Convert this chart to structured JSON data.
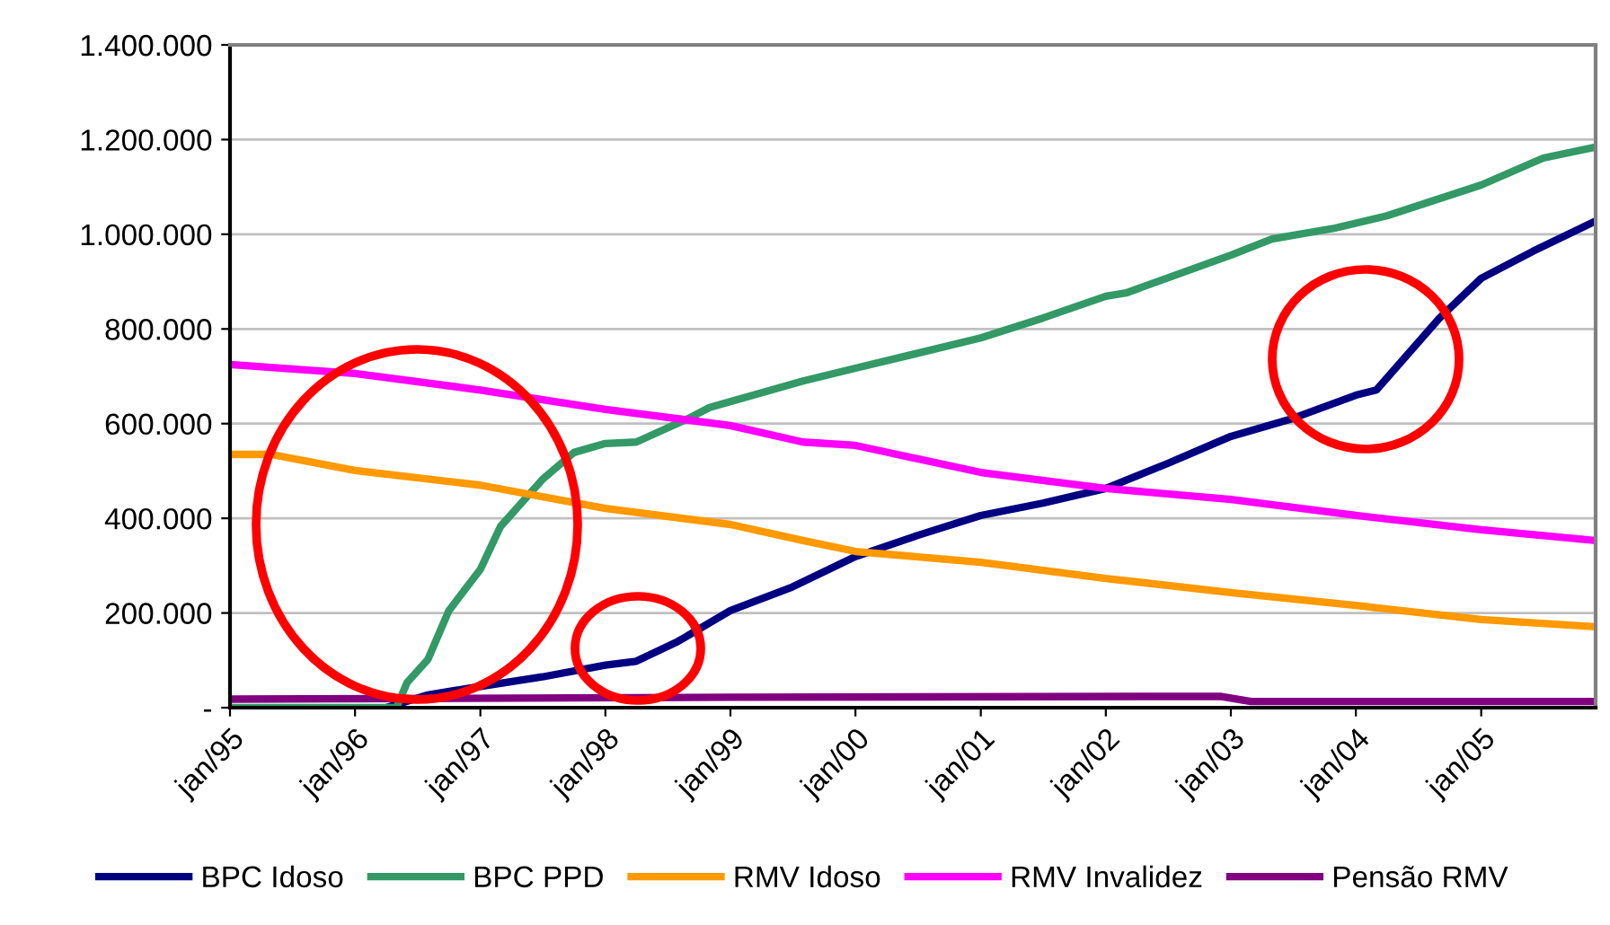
{
  "chart_data": {
    "type": "line",
    "xlim": [
      "1995-01",
      "2005-12"
    ],
    "xticks": [
      {
        "value": "1995-01",
        "label": "jan/95"
      },
      {
        "value": "1996-01",
        "label": "jan/96"
      },
      {
        "value": "1997-01",
        "label": "jan/97"
      },
      {
        "value": "1998-01",
        "label": "jan/98"
      },
      {
        "value": "1999-01",
        "label": "jan/99"
      },
      {
        "value": "2000-01",
        "label": "jan/00"
      },
      {
        "value": "2001-01",
        "label": "jan/01"
      },
      {
        "value": "2002-01",
        "label": "jan/02"
      },
      {
        "value": "2003-01",
        "label": "jan/03"
      },
      {
        "value": "2004-01",
        "label": "jan/04"
      },
      {
        "value": "2005-01",
        "label": "jan/05"
      }
    ],
    "ylim": [
      0,
      1400000
    ],
    "yticks": [
      {
        "value": 0,
        "label": "-"
      },
      {
        "value": 200000,
        "label": "200.000"
      },
      {
        "value": 400000,
        "label": "400.000"
      },
      {
        "value": 600000,
        "label": "600.000"
      },
      {
        "value": 800000,
        "label": "800.000"
      },
      {
        "value": 1000000,
        "label": "1.000.000"
      },
      {
        "value": 1200000,
        "label": "1.200.000"
      },
      {
        "value": 1400000,
        "label": "1.400.000"
      }
    ],
    "grid": "y",
    "legend": "bottom",
    "marker": "none",
    "line_style": "solid",
    "series": [
      {
        "name": "BPC Idoso",
        "color": "#000080",
        "x": [
          "1996-04",
          "1996-08",
          "1997-01",
          "1997-07",
          "1998-01",
          "1998-04",
          "1998-08",
          "1999-01",
          "1999-07",
          "2000-01",
          "2000-07",
          "2001-01",
          "2001-07",
          "2002-01",
          "2002-07",
          "2003-01",
          "2003-07",
          "2004-01",
          "2004-03",
          "2004-06",
          "2004-09",
          "2005-01",
          "2005-06",
          "2005-12"
        ],
        "values": [
          0,
          27000,
          45000,
          65000,
          90000,
          98000,
          140000,
          205000,
          255000,
          319000,
          364000,
          406000,
          432000,
          463000,
          516000,
          573000,
          611000,
          660000,
          671000,
          747000,
          823000,
          907000,
          964000,
          1028000
        ]
      },
      {
        "name": "BPC PPD",
        "color": "#339966",
        "x": [
          "1995-01",
          "1996-05",
          "1996-06",
          "1996-08",
          "1996-10",
          "1997-01",
          "1997-03",
          "1997-07",
          "1997-10",
          "1998-01",
          "1998-04",
          "1998-09",
          "1998-11",
          "1999-08",
          "2000-01",
          "2001-01",
          "2001-07",
          "2002-01",
          "2002-03",
          "2003-01",
          "2003-05",
          "2003-11",
          "2004-04",
          "2005-01",
          "2005-07",
          "2005-12"
        ],
        "values": [
          0,
          0,
          53000,
          102000,
          205000,
          292000,
          383000,
          482000,
          539000,
          558000,
          561000,
          611000,
          634000,
          690000,
          717000,
          781000,
          823000,
          869000,
          876000,
          956000,
          990000,
          1013000,
          1039000,
          1104000,
          1161000,
          1184000
        ]
      },
      {
        "name": "RMV Idoso",
        "color": "#ff9900",
        "x": [
          "1995-01",
          "1995-05",
          "1996-01",
          "1997-01",
          "1998-01",
          "1999-01",
          "1999-08",
          "2000-01",
          "2001-01",
          "2002-01",
          "2003-01",
          "2004-01",
          "2005-01",
          "2005-12"
        ],
        "values": [
          535000,
          535000,
          501000,
          470000,
          421000,
          387000,
          353000,
          330000,
          307000,
          273000,
          243000,
          216000,
          186000,
          171000
        ]
      },
      {
        "name": "RMV Invalidez",
        "color": "#ff00ff",
        "x": [
          "1995-01",
          "1996-01",
          "1997-01",
          "1998-01",
          "1999-01",
          "1999-08",
          "2000-01",
          "2001-01",
          "2002-01",
          "2003-01",
          "2004-01",
          "2005-01",
          "2005-12"
        ],
        "values": [
          725000,
          706000,
          671000,
          630000,
          596000,
          561000,
          554000,
          497000,
          463000,
          440000,
          406000,
          376000,
          353000
        ]
      },
      {
        "name": "Pensão RMV",
        "color": "#800080",
        "x": [
          "1995-01",
          "1999-01",
          "2002-12",
          "2003-03",
          "2005-12"
        ],
        "values": [
          18000,
          22000,
          24000,
          13000,
          13000
        ]
      }
    ]
  }
}
